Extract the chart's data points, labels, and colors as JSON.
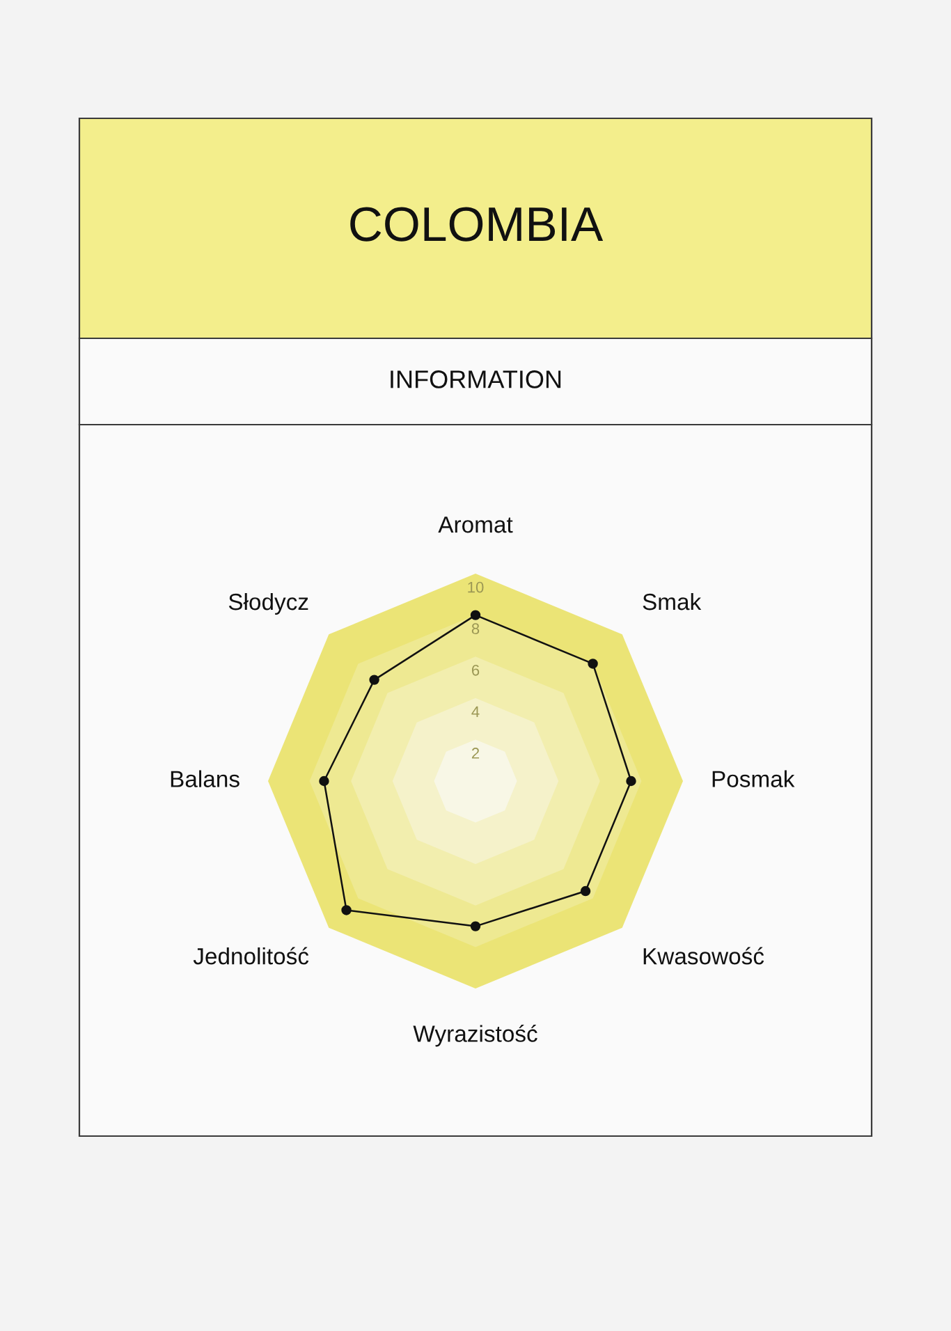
{
  "chart_data": {
    "type": "radar",
    "title": "COLOMBIA",
    "subtitle": "INFORMATION",
    "categories": [
      "Aromat",
      "Smak",
      "Posmak",
      "Kwasowość",
      "Wyrazistość",
      "Jednolitość",
      "Balans",
      "Słodycz"
    ],
    "series": [
      {
        "color": "#111111",
        "values": [
          8,
          8,
          7.5,
          7.5,
          7,
          8.8,
          7.3,
          6.9
        ]
      }
    ],
    "ylim": [
      0,
      10
    ],
    "yticks": [
      2,
      4,
      6,
      8,
      10
    ],
    "grid": true,
    "marker": "circle",
    "line_style": "solid"
  }
}
